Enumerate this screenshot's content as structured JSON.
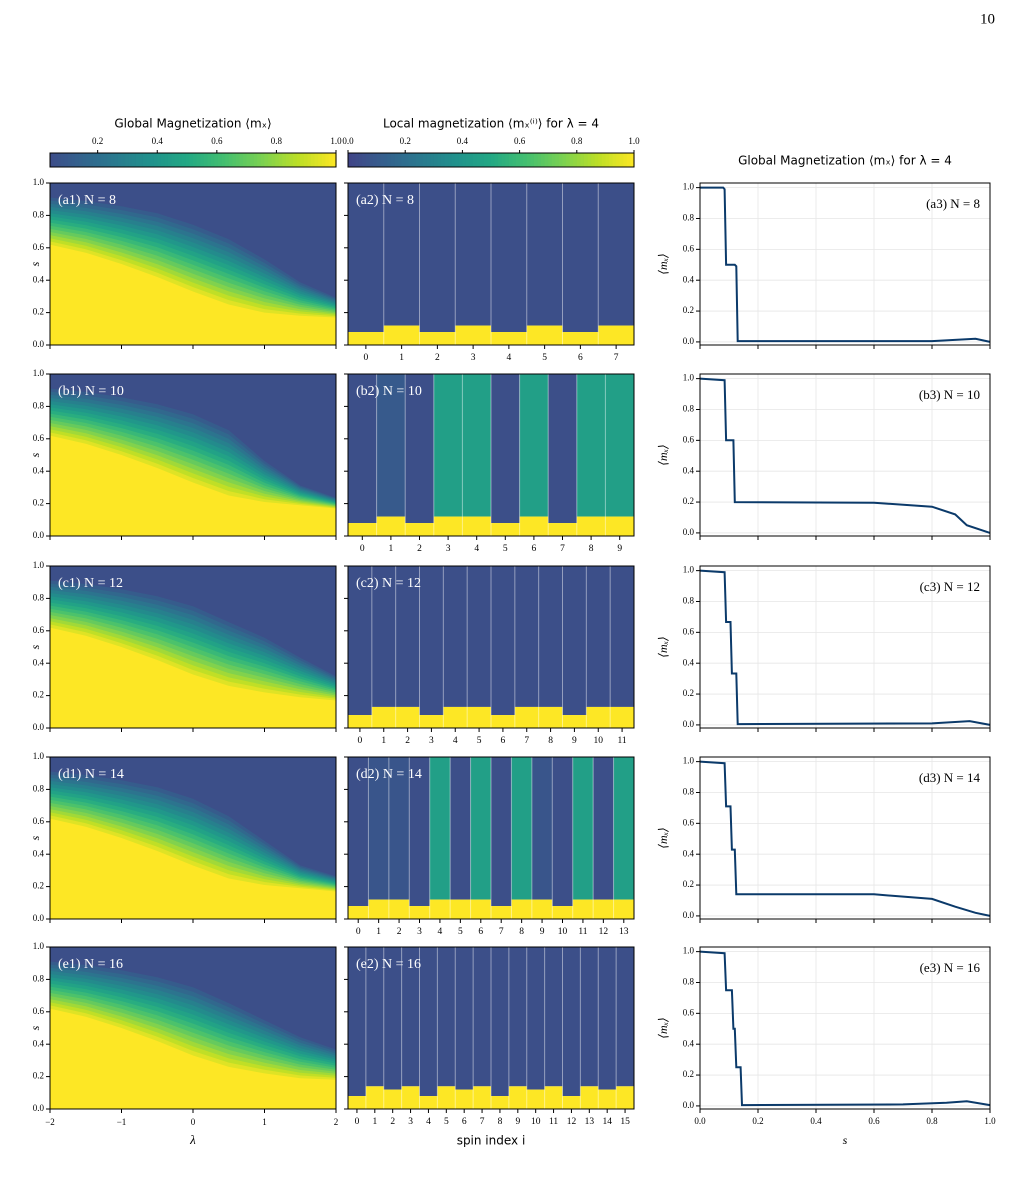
{
  "page_number": "10",
  "figure": {
    "colormap": "viridis",
    "colorbars": [
      {
        "title": "Global Magnetization ⟨mₓ⟩",
        "lim": [
          0.04,
          1
        ],
        "ticks": [
          0.2,
          0.4,
          0.6,
          0.8,
          {
            "value": 1,
            "label": "1.0"
          }
        ]
      },
      {
        "title": "Local magnetization ⟨mₓ⁽ⁱ⁾⟩ for λ = 4",
        "lim": [
          0,
          1
        ],
        "ticks": [
          {
            "value": 0,
            "label": "0.0"
          },
          0.2,
          0.4,
          0.6,
          0.8,
          {
            "value": 1,
            "label": "1.0"
          }
        ]
      }
    ],
    "line_title": "Global Magnetization ⟨mₓ⟩ for λ = 4",
    "s_label": "s",
    "lambda_label": "λ",
    "spin_label": "spin index i",
    "mx_label": "⟨mₓ⟩",
    "s_lim": [
      0,
      1
    ],
    "s_ticks": [
      {
        "value": 0,
        "label": "0.0"
      },
      0.2,
      0.4,
      0.6,
      0.8,
      {
        "value": 1,
        "label": "1.0"
      }
    ],
    "lambda_lim": [
      -2,
      2
    ],
    "lambda_ticks": [
      {
        "value": -2,
        "label": "−2"
      },
      {
        "value": -1,
        "label": "−1"
      },
      0,
      1,
      2
    ],
    "line_xlim": [
      0,
      1
    ],
    "line_ylim": [
      -0.02,
      1.03
    ],
    "heatmap_top_value": 0.05,
    "lambda_grid": [
      -2,
      -1.5,
      -1,
      -0.5,
      0,
      0.5,
      1,
      1.5,
      2
    ],
    "rows": [
      {
        "heatmap_label": "(a1) N = 8",
        "local_label": "(a2) N = 8",
        "line_label": "(a3) N = 8",
        "upper_edge": [
          0.93,
          0.91,
          0.88,
          0.84,
          0.77,
          0.68,
          0.55,
          0.4,
          0.3
        ],
        "lower_edge": [
          0.62,
          0.57,
          0.5,
          0.42,
          0.33,
          0.25,
          0.2,
          0.18,
          0.17
        ],
        "spin_ticks": [
          0,
          1,
          2,
          3,
          4,
          5,
          6,
          7
        ],
        "spin_yellow_top": [
          0.08,
          0.12,
          0.08,
          0.12,
          0.08,
          0.12,
          0.08,
          0.12
        ],
        "spin_upper_value": [
          0.05,
          0.05,
          0.05,
          0.05,
          0.05,
          0.05,
          0.05,
          0.05
        ],
        "line_x": [
          0,
          0.08,
          0.085,
          0.09,
          0.12,
          0.125,
          0.13,
          0.8,
          0.95,
          1
        ],
        "line_y": [
          1,
          1,
          0.99,
          0.5,
          0.5,
          0.49,
          0.005,
          0.005,
          0.02,
          0
        ]
      },
      {
        "heatmap_label": "(b1) N = 10",
        "local_label": "(b2) N = 10",
        "line_label": "(b3) N = 10",
        "upper_edge": [
          0.93,
          0.91,
          0.88,
          0.84,
          0.78,
          0.68,
          0.48,
          0.32,
          0.24
        ],
        "lower_edge": [
          0.62,
          0.57,
          0.5,
          0.42,
          0.33,
          0.25,
          0.21,
          0.19,
          0.17
        ],
        "spin_ticks": [
          0,
          1,
          2,
          3,
          4,
          5,
          6,
          7,
          8,
          9
        ],
        "spin_yellow_top": [
          0.08,
          0.12,
          0.08,
          0.12,
          0.12,
          0.08,
          0.12,
          0.08,
          0.12,
          0.12
        ],
        "spin_upper_value": [
          0.05,
          0.1,
          0.05,
          0.45,
          0.45,
          0.05,
          0.45,
          0.05,
          0.45,
          0.45
        ],
        "line_x": [
          0,
          0.085,
          0.09,
          0.115,
          0.12,
          0.6,
          0.8,
          0.88,
          0.92,
          1
        ],
        "line_y": [
          1,
          0.99,
          0.6,
          0.6,
          0.2,
          0.195,
          0.17,
          0.12,
          0.05,
          0
        ]
      },
      {
        "heatmap_label": "(c1) N = 12",
        "local_label": "(c2) N = 12",
        "line_label": "(c3) N = 12",
        "upper_edge": [
          0.93,
          0.91,
          0.88,
          0.84,
          0.78,
          0.68,
          0.58,
          0.45,
          0.33
        ],
        "lower_edge": [
          0.62,
          0.57,
          0.5,
          0.42,
          0.33,
          0.26,
          0.22,
          0.19,
          0.17
        ],
        "spin_ticks": [
          0,
          1,
          2,
          3,
          4,
          5,
          6,
          7,
          8,
          9,
          10,
          11
        ],
        "spin_yellow_top": [
          0.08,
          0.13,
          0.13,
          0.08,
          0.13,
          0.13,
          0.08,
          0.13,
          0.13,
          0.08,
          0.13,
          0.13
        ],
        "spin_upper_value": [
          0.05,
          0.05,
          0.05,
          0.05,
          0.05,
          0.05,
          0.05,
          0.05,
          0.05,
          0.05,
          0.05,
          0.05
        ],
        "line_x": [
          0,
          0.085,
          0.09,
          0.105,
          0.11,
          0.125,
          0.13,
          0.8,
          0.93,
          1
        ],
        "line_y": [
          1,
          0.99,
          0.667,
          0.667,
          0.333,
          0.333,
          0.005,
          0.01,
          0.025,
          0
        ]
      },
      {
        "heatmap_label": "(d1) N = 14",
        "local_label": "(d2) N = 14",
        "line_label": "(d3) N = 14",
        "upper_edge": [
          0.93,
          0.91,
          0.88,
          0.84,
          0.77,
          0.66,
          0.5,
          0.34,
          0.27
        ],
        "lower_edge": [
          0.62,
          0.57,
          0.5,
          0.42,
          0.33,
          0.25,
          0.21,
          0.19,
          0.17
        ],
        "spin_ticks": [
          0,
          1,
          2,
          3,
          4,
          5,
          6,
          7,
          8,
          9,
          10,
          11,
          12,
          13
        ],
        "spin_yellow_top": [
          0.08,
          0.12,
          0.12,
          0.08,
          0.12,
          0.12,
          0.12,
          0.08,
          0.12,
          0.12,
          0.08,
          0.12,
          0.12,
          0.12
        ],
        "spin_upper_value": [
          0.05,
          0.08,
          0.08,
          0.05,
          0.45,
          0.05,
          0.45,
          0.05,
          0.45,
          0.08,
          0.05,
          0.45,
          0.05,
          0.45
        ],
        "line_x": [
          0,
          0.085,
          0.09,
          0.105,
          0.11,
          0.12,
          0.125,
          0.6,
          0.8,
          0.88,
          0.95,
          1
        ],
        "line_y": [
          1,
          0.99,
          0.71,
          0.71,
          0.43,
          0.43,
          0.14,
          0.14,
          0.11,
          0.06,
          0.02,
          0
        ]
      },
      {
        "heatmap_label": "(e1) N = 16",
        "local_label": "(e2) N = 16",
        "line_label": "(e3) N = 16",
        "upper_edge": [
          0.93,
          0.91,
          0.88,
          0.84,
          0.78,
          0.68,
          0.57,
          0.46,
          0.38
        ],
        "lower_edge": [
          0.62,
          0.57,
          0.5,
          0.42,
          0.33,
          0.26,
          0.22,
          0.19,
          0.18
        ],
        "spin_ticks": [
          0,
          1,
          2,
          3,
          4,
          5,
          6,
          7,
          8,
          9,
          10,
          11,
          12,
          13,
          14,
          15
        ],
        "spin_yellow_top": [
          0.08,
          0.14,
          0.12,
          0.14,
          0.08,
          0.14,
          0.12,
          0.14,
          0.08,
          0.14,
          0.12,
          0.14,
          0.08,
          0.14,
          0.12,
          0.14
        ],
        "spin_upper_value": [
          0.05,
          0.05,
          0.05,
          0.05,
          0.05,
          0.05,
          0.05,
          0.05,
          0.05,
          0.05,
          0.05,
          0.05,
          0.05,
          0.05,
          0.05,
          0.05
        ],
        "line_x": [
          0,
          0.085,
          0.09,
          0.11,
          0.115,
          0.12,
          0.125,
          0.14,
          0.145,
          0.7,
          0.85,
          0.92,
          1
        ],
        "line_y": [
          1,
          0.99,
          0.75,
          0.75,
          0.5,
          0.5,
          0.25,
          0.25,
          0.005,
          0.01,
          0.02,
          0.03,
          0.005
        ]
      }
    ]
  }
}
